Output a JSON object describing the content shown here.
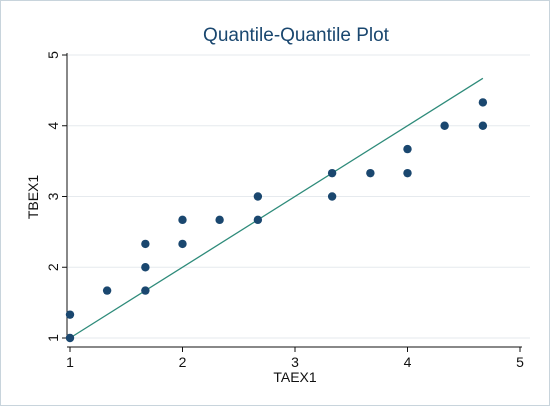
{
  "chart_data": {
    "type": "scatter",
    "title": "Quantile-Quantile Plot",
    "xlabel": "TAEX1",
    "ylabel": "TBEX1",
    "xlim": [
      1,
      5
    ],
    "ylim": [
      1,
      5
    ],
    "x_ticks": [
      "1",
      "2",
      "3",
      "4",
      "5"
    ],
    "y_ticks": [
      "1",
      "2",
      "3",
      "4",
      "5"
    ],
    "grid": true,
    "legend": "none",
    "points": [
      {
        "x": 1.0,
        "y": 1.0
      },
      {
        "x": 1.0,
        "y": 1.33
      },
      {
        "x": 1.33,
        "y": 1.67
      },
      {
        "x": 1.67,
        "y": 1.67
      },
      {
        "x": 1.67,
        "y": 2.0
      },
      {
        "x": 1.67,
        "y": 2.33
      },
      {
        "x": 2.0,
        "y": 2.33
      },
      {
        "x": 2.0,
        "y": 2.67
      },
      {
        "x": 2.33,
        "y": 2.67
      },
      {
        "x": 2.67,
        "y": 2.67
      },
      {
        "x": 2.67,
        "y": 3.0
      },
      {
        "x": 3.33,
        "y": 3.0
      },
      {
        "x": 3.33,
        "y": 3.33
      },
      {
        "x": 3.67,
        "y": 3.33
      },
      {
        "x": 4.0,
        "y": 3.33
      },
      {
        "x": 4.0,
        "y": 3.67
      },
      {
        "x": 4.33,
        "y": 4.0
      },
      {
        "x": 4.67,
        "y": 4.0
      },
      {
        "x": 4.67,
        "y": 4.33
      }
    ],
    "reference_line": {
      "x": [
        1.0,
        4.67
      ],
      "y": [
        1.0,
        4.67
      ]
    },
    "colors": {
      "title": "#1a476f",
      "points": "#1a476f",
      "line": "#2e8b7a",
      "grid": "#e6eaee",
      "axis": "#111111"
    }
  }
}
